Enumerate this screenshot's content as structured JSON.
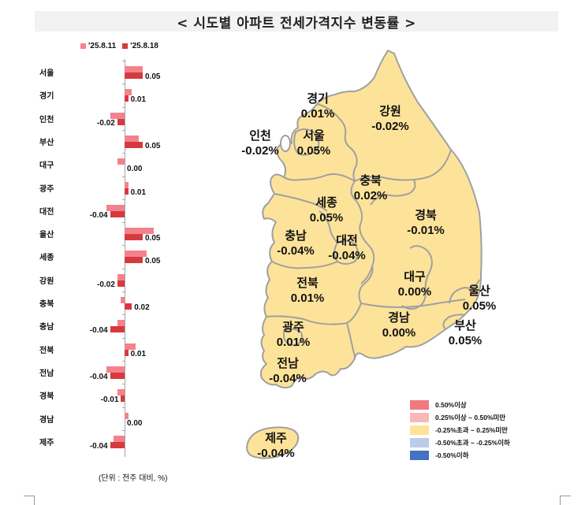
{
  "title": "< 시도별 아파트 전세가격지수 변동률 >",
  "chart_data": {
    "type": "bar",
    "orientation": "horizontal",
    "title": "시도별 아파트 전세가격지수 변동률",
    "categories": [
      "서울",
      "경기",
      "인천",
      "부산",
      "대구",
      "광주",
      "대전",
      "울산",
      "세종",
      "강원",
      "충북",
      "충남",
      "전북",
      "전남",
      "경북",
      "경남",
      "제주"
    ],
    "series": [
      {
        "name": "'25.8.11",
        "color": "#f4828c",
        "values": [
          0.05,
          0.02,
          -0.04,
          0.04,
          -0.02,
          0.01,
          -0.05,
          0.08,
          0.06,
          -0.02,
          -0.01,
          -0.02,
          0.03,
          -0.05,
          -0.02,
          0.01,
          -0.03
        ]
      },
      {
        "name": "'25.8.18",
        "color": "#d63a3e",
        "values": [
          0.05,
          0.01,
          -0.02,
          0.05,
          0.0,
          0.01,
          -0.04,
          0.05,
          0.05,
          -0.02,
          0.02,
          -0.04,
          0.01,
          -0.04,
          -0.01,
          0.0,
          -0.04
        ]
      }
    ],
    "data_labels": [
      "0.05",
      "0.01",
      "-0.02",
      "0.05",
      "0.00",
      "0.01",
      "-0.04",
      "0.05",
      "0.05",
      "-0.02",
      "0.02",
      "-0.04",
      "0.01",
      "-0.04",
      "-0.01",
      "0.00",
      "-0.04"
    ],
    "unit_note": "(단위 : 전주 대비, %)",
    "legend_position": "top",
    "grid": false
  },
  "chart": {
    "legend": [
      {
        "label": "'25.8.11",
        "color": "#f4828c"
      },
      {
        "label": "'25.8.18",
        "color": "#d63a3e"
      }
    ],
    "unit": "(단위 : 전주 대비, %)"
  },
  "map": {
    "fill_color": "#fde39a",
    "border_color": "#a0a0a0",
    "regions": [
      {
        "name": "경기",
        "value": "0.01%"
      },
      {
        "name": "강원",
        "value": "-0.02%"
      },
      {
        "name": "인천",
        "value": "-0.02%"
      },
      {
        "name": "서울",
        "value": "0.05%"
      },
      {
        "name": "충북",
        "value": "0.02%"
      },
      {
        "name": "세종",
        "value": "0.05%"
      },
      {
        "name": "경북",
        "value": "-0.01%"
      },
      {
        "name": "충남",
        "value": "-0.04%"
      },
      {
        "name": "대전",
        "value": "-0.04%"
      },
      {
        "name": "대구",
        "value": "0.00%"
      },
      {
        "name": "전북",
        "value": "0.01%"
      },
      {
        "name": "울산",
        "value": "0.05%"
      },
      {
        "name": "경남",
        "value": "0.00%"
      },
      {
        "name": "광주",
        "value": "0.01%"
      },
      {
        "name": "부산",
        "value": "0.05%"
      },
      {
        "name": "전남",
        "value": "-0.04%"
      },
      {
        "name": "제주",
        "value": "-0.04%"
      }
    ],
    "legend": [
      {
        "label": "0.50%이상",
        "color": "#f07a7e"
      },
      {
        "label": "0.25%이상 ~ 0.50%미만",
        "color": "#f7b8b8"
      },
      {
        "label": "-0.25%초과 ~ 0.25%미만",
        "color": "#fde39a"
      },
      {
        "label": "-0.50%초과 ~ -0.25%이하",
        "color": "#bccbe8"
      },
      {
        "label": "-0.50%이하",
        "color": "#4472c4"
      }
    ]
  }
}
